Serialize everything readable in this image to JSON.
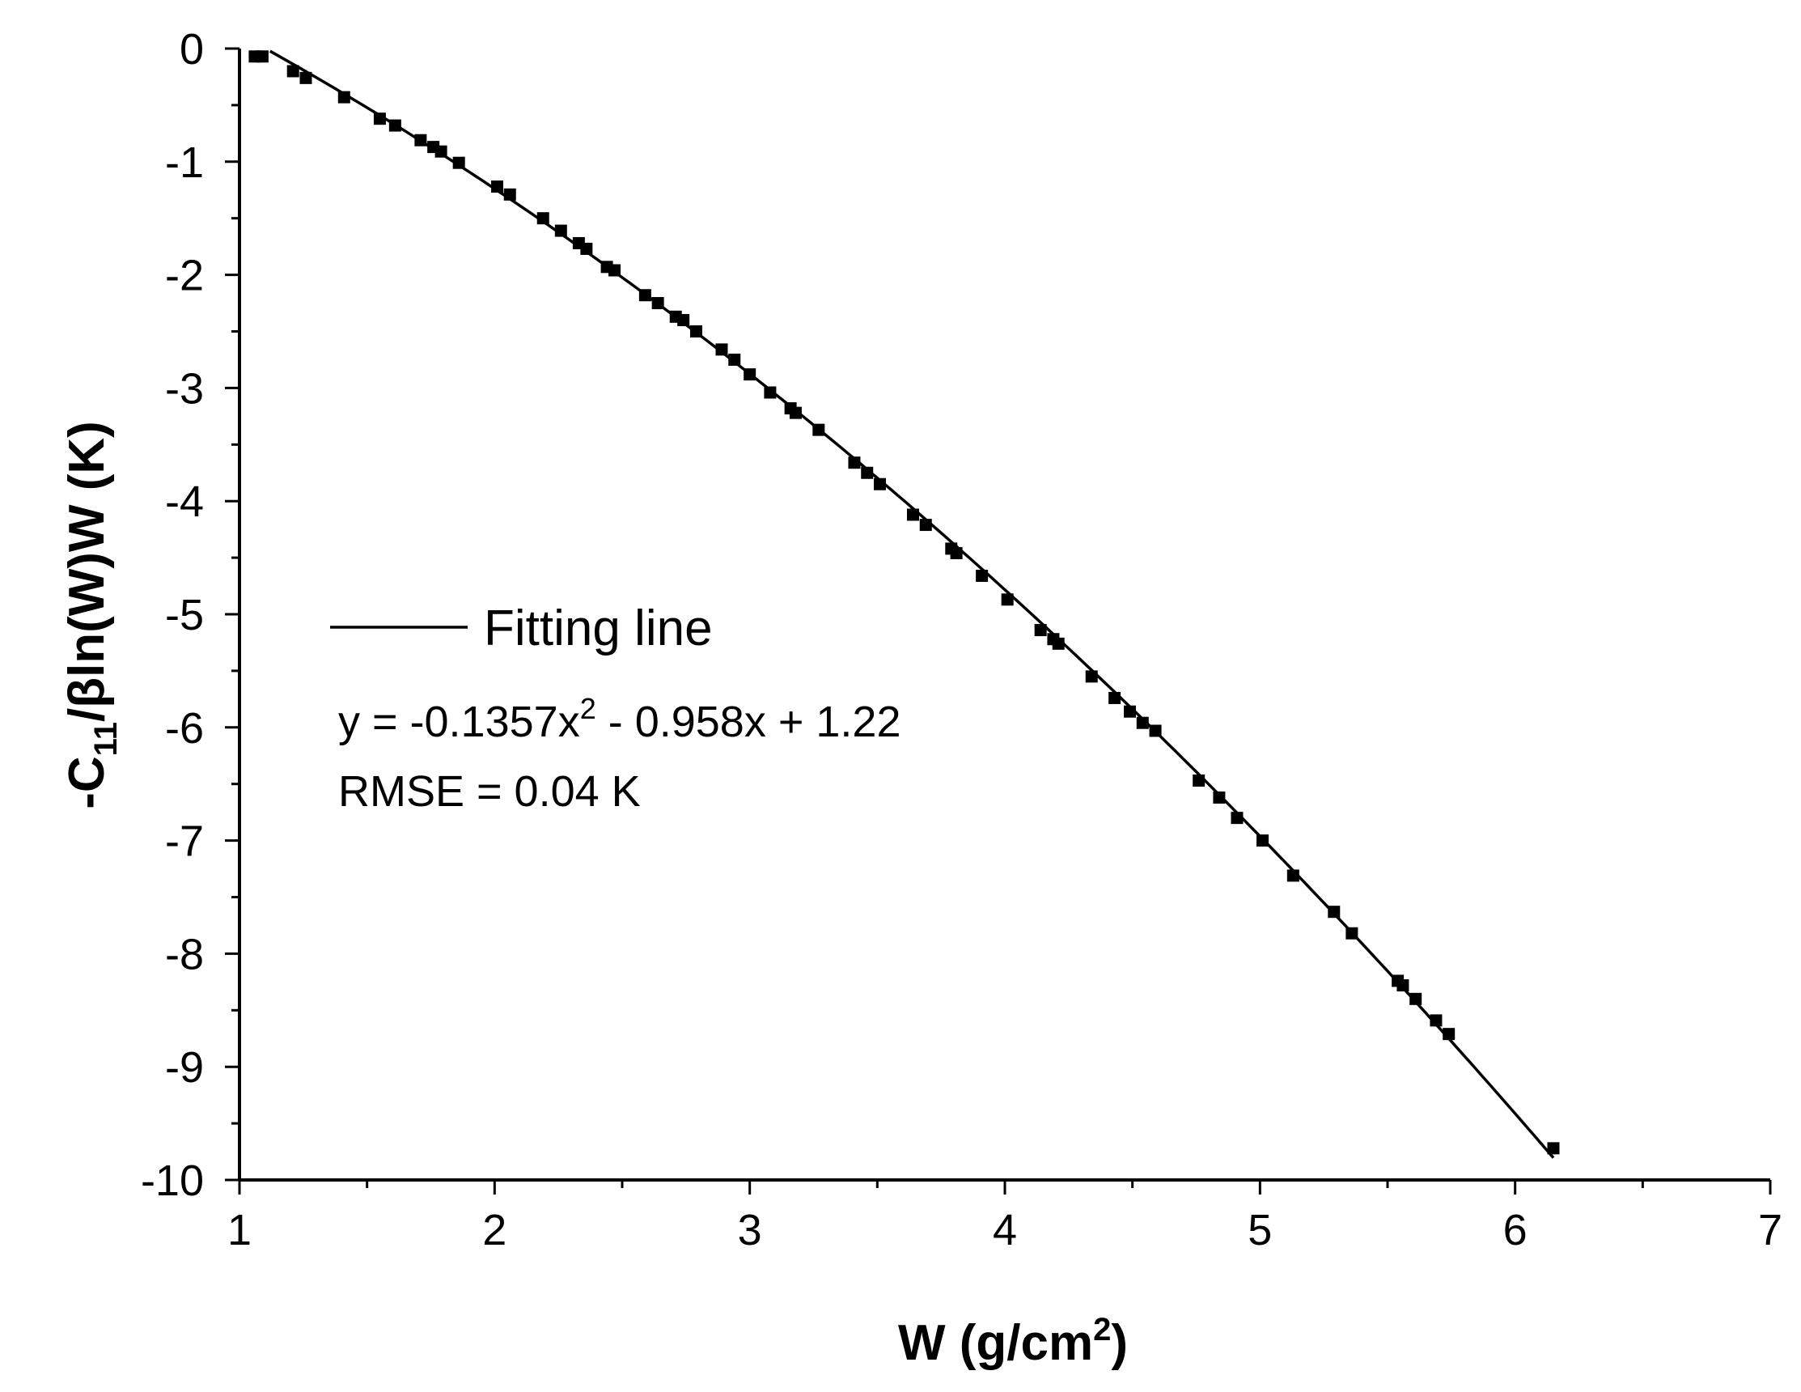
{
  "chart_data": {
    "type": "scatter",
    "xlabel": {
      "prefix": "W (g/cm",
      "sup": "2",
      "suffix": ")"
    },
    "ylabel": {
      "prefix": "-C",
      "sub": "11",
      "suffix": "/βln(W)W (K)"
    },
    "xlim": [
      1,
      7
    ],
    "ylim": [
      -10,
      0
    ],
    "x_ticks": [
      "1",
      "2",
      "3",
      "4",
      "5",
      "6",
      "7"
    ],
    "y_ticks": [
      "0",
      "-1",
      "-2",
      "-3",
      "-4",
      "-5",
      "-6",
      "-7",
      "-8",
      "-9",
      "-10"
    ],
    "grid": false,
    "legend": {
      "position": "center-left",
      "entries": [
        "Fitting line"
      ]
    },
    "annotations": {
      "equation": {
        "before": "y = -0.1357x",
        "sup": "2",
        "after": " - 0.958x + 1.22"
      },
      "rmse": "RMSE = 0.04 K"
    },
    "fit": {
      "a": -0.1357,
      "b": -0.958,
      "c": 1.22,
      "x_range": [
        1.12,
        6.15
      ]
    },
    "series": [
      {
        "marker": "square",
        "color": "#000000",
        "points": [
          [
            1.06,
            -0.07
          ],
          [
            1.09,
            -0.07
          ],
          [
            1.21,
            -0.2
          ],
          [
            1.26,
            -0.26
          ],
          [
            1.41,
            -0.43
          ],
          [
            1.55,
            -0.62
          ],
          [
            1.61,
            -0.68
          ],
          [
            1.71,
            -0.81
          ],
          [
            1.76,
            -0.87
          ],
          [
            1.79,
            -0.91
          ],
          [
            1.86,
            -1.01
          ],
          [
            2.01,
            -1.22
          ],
          [
            2.06,
            -1.29
          ],
          [
            2.19,
            -1.5
          ],
          [
            2.26,
            -1.61
          ],
          [
            2.33,
            -1.72
          ],
          [
            2.36,
            -1.77
          ],
          [
            2.44,
            -1.93
          ],
          [
            2.47,
            -1.96
          ],
          [
            2.59,
            -2.18
          ],
          [
            2.64,
            -2.25
          ],
          [
            2.71,
            -2.37
          ],
          [
            2.74,
            -2.4
          ],
          [
            2.79,
            -2.5
          ],
          [
            2.89,
            -2.66
          ],
          [
            2.94,
            -2.75
          ],
          [
            3.0,
            -2.88
          ],
          [
            3.08,
            -3.04
          ],
          [
            3.16,
            -3.18
          ],
          [
            3.18,
            -3.22
          ],
          [
            3.27,
            -3.37
          ],
          [
            3.41,
            -3.66
          ],
          [
            3.46,
            -3.75
          ],
          [
            3.51,
            -3.85
          ],
          [
            3.64,
            -4.12
          ],
          [
            3.69,
            -4.21
          ],
          [
            3.79,
            -4.42
          ],
          [
            3.81,
            -4.46
          ],
          [
            3.91,
            -4.66
          ],
          [
            4.01,
            -4.87
          ],
          [
            4.14,
            -5.14
          ],
          [
            4.19,
            -5.22
          ],
          [
            4.21,
            -5.26
          ],
          [
            4.34,
            -5.55
          ],
          [
            4.43,
            -5.74
          ],
          [
            4.49,
            -5.86
          ],
          [
            4.54,
            -5.96
          ],
          [
            4.59,
            -6.03
          ],
          [
            4.76,
            -6.47
          ],
          [
            4.84,
            -6.62
          ],
          [
            4.91,
            -6.8
          ],
          [
            5.01,
            -7.0
          ],
          [
            5.13,
            -7.31
          ],
          [
            5.29,
            -7.63
          ],
          [
            5.36,
            -7.82
          ],
          [
            5.54,
            -8.24
          ],
          [
            5.56,
            -8.28
          ],
          [
            5.61,
            -8.4
          ],
          [
            5.69,
            -8.59
          ],
          [
            5.74,
            -8.71
          ],
          [
            6.15,
            -9.72
          ]
        ]
      }
    ]
  }
}
